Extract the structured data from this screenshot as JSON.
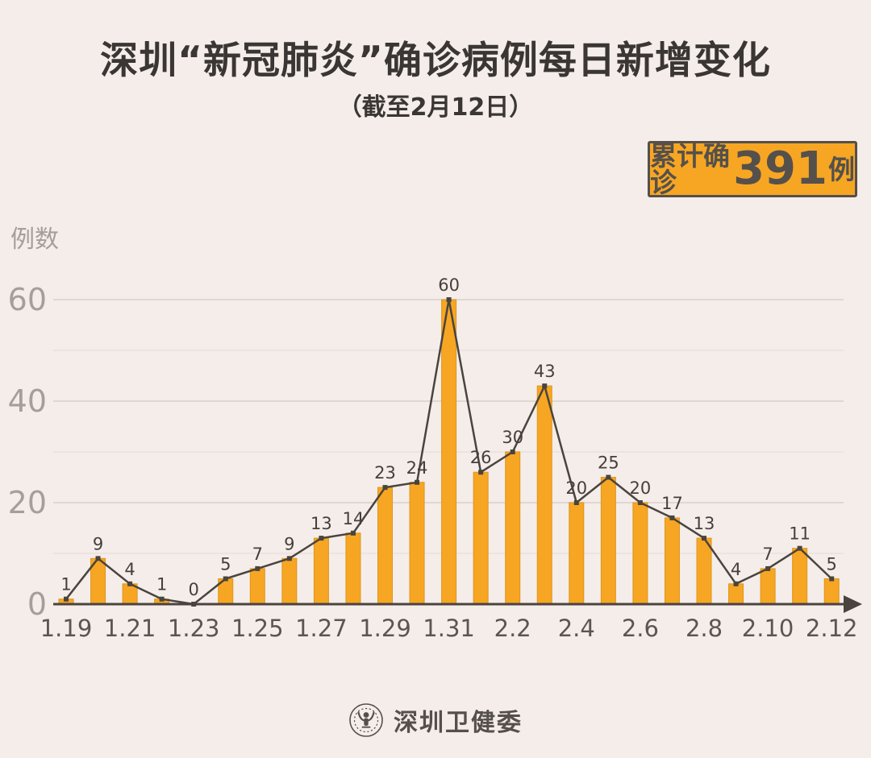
{
  "page": {
    "background_color": "#F5EDEA"
  },
  "header": {
    "title": "深圳“新冠肺炎”确诊病例每日新增变化",
    "subtitle": "（截至2月12日）",
    "badge": {
      "prefix": "累计确诊",
      "number": "391",
      "suffix": "例",
      "background_color": "#F7A623",
      "border_color": "#55504B"
    }
  },
  "chart_data": {
    "type": "bar",
    "subtype": "bar-with-line-overlay",
    "title": "深圳“新冠肺炎”确诊病例每日新增变化",
    "xlabel": "",
    "ylabel": "例数",
    "categories": [
      "1.19",
      "1.20",
      "1.21",
      "1.22",
      "1.23",
      "1.24",
      "1.25",
      "1.26",
      "1.27",
      "1.28",
      "1.29",
      "1.30",
      "1.31",
      "2.1",
      "2.2",
      "2.3",
      "2.4",
      "2.5",
      "2.6",
      "2.7",
      "2.8",
      "2.9",
      "2.10",
      "2.11",
      "2.12"
    ],
    "values": [
      1,
      9,
      4,
      1,
      0,
      5,
      7,
      9,
      13,
      14,
      23,
      24,
      60,
      26,
      30,
      43,
      20,
      25,
      20,
      17,
      13,
      4,
      7,
      11,
      5
    ],
    "x_tick_labels": [
      "1.19",
      "1.21",
      "1.23",
      "1.25",
      "1.27",
      "1.29",
      "1.31",
      "2.2",
      "2.4",
      "2.6",
      "2.8",
      "2.10",
      "2.12"
    ],
    "y_ticks": [
      0,
      20,
      40,
      60
    ],
    "ylim": [
      0,
      63
    ],
    "grid": "horizontal",
    "legend": "none",
    "colors": {
      "bar_fill": "#F7A623",
      "bar_stroke": "#DD951C",
      "line": "#4A443E",
      "grid_major": "#E0D6D2",
      "grid_minor": "#EDE4E0"
    },
    "total": 391
  },
  "footer": {
    "source": "深圳卫健委",
    "logo": "shenzhen-health-commission-seal"
  }
}
